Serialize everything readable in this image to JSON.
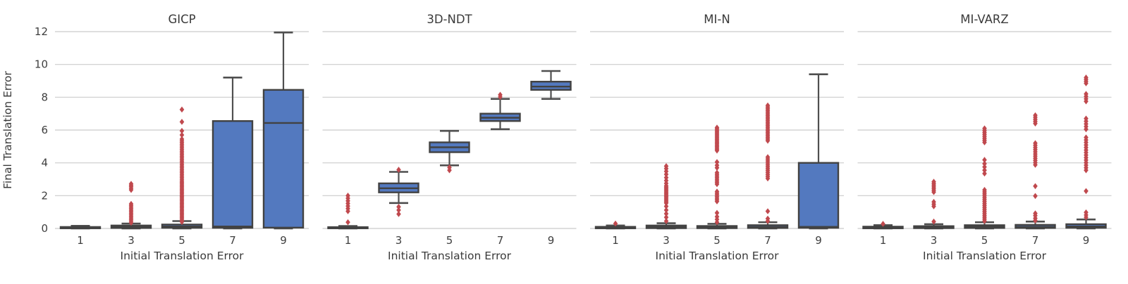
{
  "figure": {
    "xlabel": "Initial Translation Error",
    "ylabel": "Final Translation Error",
    "y_tick_labels": [
      "0",
      "2",
      "4",
      "6",
      "8",
      "10",
      "12"
    ],
    "x_tick_labels": [
      "1",
      "3",
      "5",
      "7",
      "9"
    ]
  },
  "colors": {
    "background": "#ffffff",
    "box_fill": "#5379BF",
    "box_edge": "#424242",
    "whisker": "#4F4F4F",
    "outlier": "#C0494E",
    "grid": "#CBCBCB",
    "text": "#3A3A3A",
    "tick_text": "#3F3F3F"
  },
  "chart_data": {
    "type": "boxplot",
    "categories": [
      "1",
      "3",
      "5",
      "7",
      "9"
    ],
    "xlabel": "Initial Translation Error",
    "ylabel": "Final Translation Error",
    "ylim": [
      0,
      12
    ],
    "y_gridlines": [
      0,
      2,
      4,
      6,
      8,
      10,
      12
    ],
    "grid": true,
    "legend": "none",
    "panels": [
      {
        "title": "GICP",
        "boxes": [
          {
            "x": "1",
            "whislo": 0.0,
            "q1": 0.01,
            "med": 0.04,
            "q3": 0.09,
            "whishi": 0.16,
            "outliers": []
          },
          {
            "x": "3",
            "whislo": 0.0,
            "q1": 0.03,
            "med": 0.09,
            "q3": 0.18,
            "whishi": 0.3,
            "outliers": [
              [
                0.35,
                1.5,
                13
              ],
              2.35,
              2.45,
              2.55,
              2.63,
              2.72
            ]
          },
          {
            "x": "5",
            "whislo": 0.0,
            "q1": 0.04,
            "med": 0.12,
            "q3": 0.24,
            "whishi": 0.45,
            "outliers": [
              [
                0.4,
                2.9,
                30
              ],
              [
                3.0,
                4.5,
                16
              ],
              [
                4.6,
                5.45,
                9
              ],
              5.7,
              5.95,
              6.5,
              7.25
            ]
          },
          {
            "x": "7",
            "whislo": 0.0,
            "q1": 0.04,
            "med": 0.12,
            "q3": 6.55,
            "whishi": 9.2,
            "outliers": []
          },
          {
            "x": "9",
            "whislo": 0.0,
            "q1": 0.05,
            "med": 6.43,
            "q3": 8.45,
            "whishi": 11.95,
            "outliers": []
          }
        ]
      },
      {
        "title": "3D-NDT",
        "boxes": [
          {
            "x": "1",
            "whislo": 0.0,
            "q1": 0.01,
            "med": 0.04,
            "q3": 0.08,
            "whishi": 0.15,
            "outliers": [
              0.38,
              [
                1.05,
                2.0,
                7
              ]
            ]
          },
          {
            "x": "3",
            "whislo": 1.55,
            "q1": 2.2,
            "med": 2.45,
            "q3": 2.75,
            "whishi": 3.45,
            "outliers": [
              0.88,
              1.12,
              1.32,
              3.58
            ]
          },
          {
            "x": "5",
            "whislo": 3.85,
            "q1": 4.65,
            "med": 4.95,
            "q3": 5.25,
            "whishi": 5.95,
            "outliers": [
              3.55,
              3.72
            ]
          },
          {
            "x": "7",
            "whislo": 6.05,
            "q1": 6.55,
            "med": 6.75,
            "q3": 7.0,
            "whishi": 7.9,
            "outliers": [
              8.02,
              8.15
            ]
          },
          {
            "x": "9",
            "whislo": 7.9,
            "q1": 8.45,
            "med": 8.65,
            "q3": 8.95,
            "whishi": 9.6,
            "outliers": []
          }
        ]
      },
      {
        "title": "MI-N",
        "boxes": [
          {
            "x": "1",
            "whislo": 0.0,
            "q1": 0.01,
            "med": 0.05,
            "q3": 0.1,
            "whishi": 0.18,
            "outliers": [
              0.3
            ]
          },
          {
            "x": "3",
            "whislo": 0.0,
            "q1": 0.02,
            "med": 0.08,
            "q3": 0.18,
            "whishi": 0.32,
            "outliers": [
              0.45,
              0.68,
              0.9,
              1.12,
              1.35,
              [
                1.55,
                2.6,
                14
              ],
              2.75,
              2.92,
              3.1,
              3.3,
              3.48,
              3.65,
              3.8
            ]
          },
          {
            "x": "5",
            "whislo": 0.0,
            "q1": 0.02,
            "med": 0.07,
            "q3": 0.15,
            "whishi": 0.28,
            "outliers": [
              0.38,
              0.55,
              0.72,
              0.95,
              [
                1.65,
                2.25,
                7
              ],
              [
                2.7,
                3.4,
                8
              ],
              3.7,
              3.85,
              4.05,
              [
                4.75,
                6.15,
                18
              ]
            ]
          },
          {
            "x": "7",
            "whislo": 0.0,
            "q1": 0.03,
            "med": 0.09,
            "q3": 0.2,
            "whishi": 0.38,
            "outliers": [
              0.45,
              0.6,
              1.05,
              [
                3.05,
                4.35,
                12
              ],
              [
                5.35,
                7.5,
                22
              ]
            ]
          },
          {
            "x": "9",
            "whislo": 0.0,
            "q1": 0.04,
            "med": 0.1,
            "q3": 4.0,
            "whishi": 9.4,
            "outliers": []
          }
        ]
      },
      {
        "title": "MI-VARZ",
        "boxes": [
          {
            "x": "1",
            "whislo": 0.0,
            "q1": 0.01,
            "med": 0.05,
            "q3": 0.11,
            "whishi": 0.2,
            "outliers": [
              0.28
            ]
          },
          {
            "x": "3",
            "whislo": 0.0,
            "q1": 0.02,
            "med": 0.07,
            "q3": 0.14,
            "whishi": 0.26,
            "outliers": [
              0.42,
              1.35,
              1.48,
              1.62,
              [
                2.22,
                2.85,
                7
              ]
            ]
          },
          {
            "x": "5",
            "whislo": 0.0,
            "q1": 0.03,
            "med": 0.1,
            "q3": 0.2,
            "whishi": 0.38,
            "outliers": [
              [
                0.45,
                2.35,
                17
              ],
              3.35,
              3.55,
              3.75,
              3.95,
              4.18,
              [
                5.25,
                6.1,
                8
              ]
            ]
          },
          {
            "x": "7",
            "whislo": 0.0,
            "q1": 0.03,
            "med": 0.1,
            "q3": 0.22,
            "whishi": 0.42,
            "outliers": [
              0.48,
              0.62,
              0.78,
              0.92,
              1.98,
              2.58,
              [
                3.88,
                5.2,
                11
              ],
              [
                6.4,
                6.9,
                5
              ]
            ]
          },
          {
            "x": "9",
            "whislo": 0.0,
            "q1": 0.04,
            "med": 0.12,
            "q3": 0.26,
            "whishi": 0.55,
            "outliers": [
              0.68,
              0.82,
              0.98,
              2.28,
              [
                3.55,
                5.55,
                14
              ],
              [
                6.05,
                6.7,
                5
              ],
              [
                7.75,
                8.2,
                4
              ],
              [
                8.85,
                9.2,
                4
              ]
            ]
          }
        ]
      }
    ]
  }
}
